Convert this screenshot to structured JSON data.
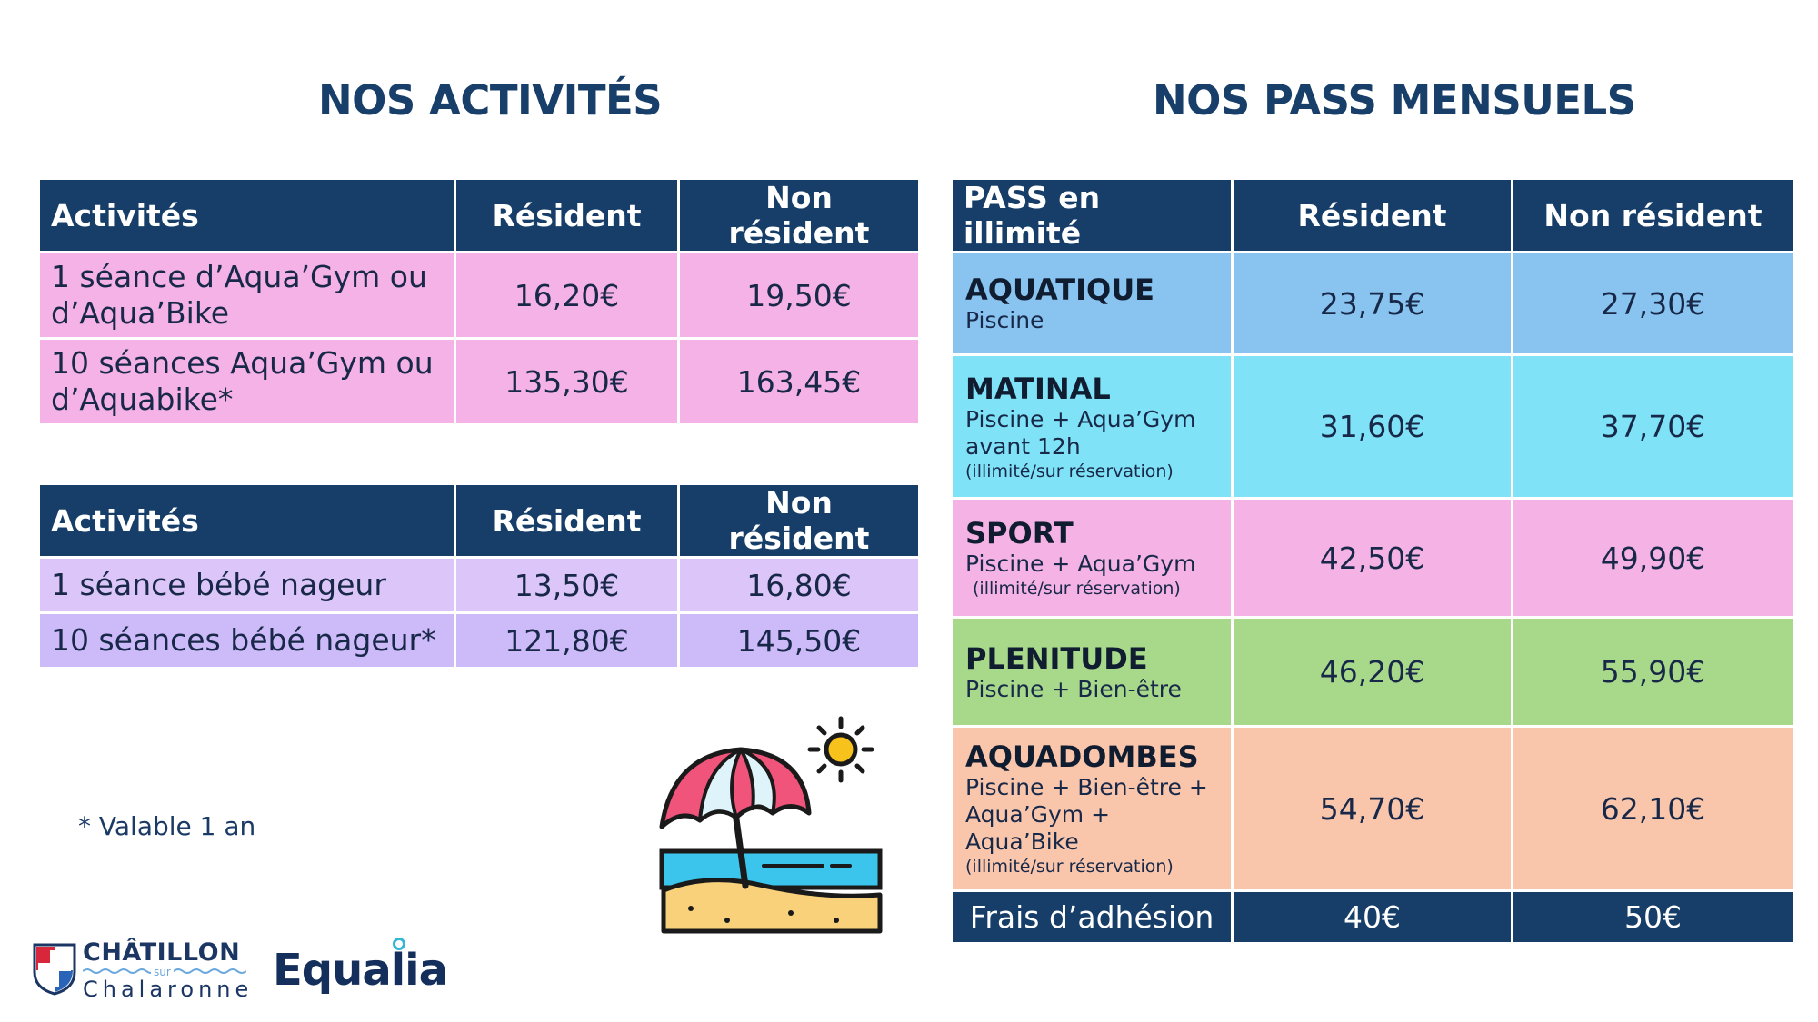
{
  "titles": {
    "left": "NOS ACTIVITÉS",
    "right": "NOS PASS MENSUELS"
  },
  "activities_table_1": {
    "headers": [
      "Activités",
      "Résident",
      "Non résident"
    ],
    "rows": [
      {
        "label": "1 séance d’Aqua’Gym ou d’Aqua’Bike",
        "resident": "16,20€",
        "non_resident": "19,50€"
      },
      {
        "label": "10 séances Aqua’Gym ou d’Aquabike*",
        "resident": "135,30€",
        "non_resident": "163,45€"
      }
    ]
  },
  "activities_table_2": {
    "headers": [
      "Activités",
      "Résident",
      "Non résident"
    ],
    "rows": [
      {
        "label": "1 séance bébé nageur",
        "resident": "13,50€",
        "non_resident": "16,80€"
      },
      {
        "label": "10 séances bébé nageur*",
        "resident": "121,80€",
        "non_resident": "145,50€"
      }
    ]
  },
  "pass_table": {
    "headers": [
      "PASS en illimité",
      "Résident",
      "Non résident"
    ],
    "rows": [
      {
        "name": "AQUATIQUE",
        "desc": "Piscine",
        "note": "",
        "resident": "23,75€",
        "non_resident": "27,30€"
      },
      {
        "name": "MATINAL",
        "desc": "Piscine + Aqua’Gym avant 12h",
        "note": "(illimité/sur réservation)",
        "resident": "31,60€",
        "non_resident": "37,70€"
      },
      {
        "name": "SPORT",
        "desc": "Piscine + Aqua’Gym",
        "note": "(illimité/sur réservation)",
        "resident": "42,50€",
        "non_resident": "49,90€"
      },
      {
        "name": "PLENITUDE",
        "desc": "Piscine + Bien-être",
        "note": "",
        "resident": "46,20€",
        "non_resident": "55,90€"
      },
      {
        "name": "AQUADOMBES",
        "desc": "Piscine + Bien-être + Aqua’Gym + Aqua’Bike",
        "note": "(illimité/sur réservation)",
        "resident": "54,70€",
        "non_resident": "62,10€"
      }
    ],
    "fees": {
      "label": "Frais d’adhésion",
      "resident": "40€",
      "non_resident": "50€"
    }
  },
  "footnote": "* Valable 1 an",
  "logos": {
    "chatillon_name": "CHÂTILLON",
    "chatillon_sur": "sur",
    "chatillon_sub": "Chalaronne",
    "equalia": "Equalia"
  },
  "icons": [
    "beach-umbrella-icon",
    "sun-icon",
    "shield-icon"
  ]
}
